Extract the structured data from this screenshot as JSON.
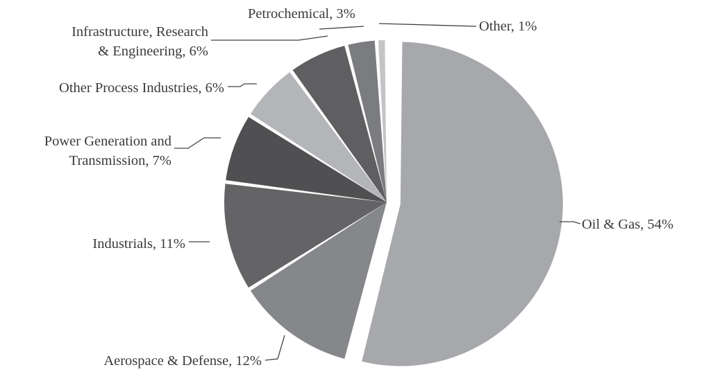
{
  "chart_data": {
    "type": "pie",
    "slices": [
      {
        "name": "Oil & Gas",
        "value": 54,
        "color": "#a7a8ab"
      },
      {
        "name": "Aerospace & Defense",
        "value": 12,
        "color": "#86878a"
      },
      {
        "name": "Industrials",
        "value": 11,
        "color": "#646466"
      },
      {
        "name": "Power Generation and Transmission",
        "value": 7,
        "color": "#505052"
      },
      {
        "name": "Other Process Industries",
        "value": 6,
        "color": "#b4b5b8"
      },
      {
        "name": "Infrastructure, Research & Engineering",
        "value": 6,
        "color": "#5f5f61"
      },
      {
        "name": "Petrochemical",
        "value": 3,
        "color": "#7b7c7f"
      },
      {
        "name": "Other",
        "value": 1,
        "color": "#c3c4c6"
      }
    ],
    "labels": [
      {
        "lines": [
          "Oil & Gas, 54%"
        ]
      },
      {
        "lines": [
          "Aerospace & Defense, 12%"
        ]
      },
      {
        "lines": [
          "Industrials, 11%"
        ]
      },
      {
        "lines": [
          "Power Generation and",
          "Transmission, 7%"
        ]
      },
      {
        "lines": [
          "Other Process Industries, 6%"
        ]
      },
      {
        "lines": [
          "Infrastructure, Research",
          "& Engineering, 6%"
        ]
      },
      {
        "lines": [
          "Petrochemical, 3%"
        ]
      },
      {
        "lines": [
          "Other, 1%"
        ]
      }
    ]
  }
}
